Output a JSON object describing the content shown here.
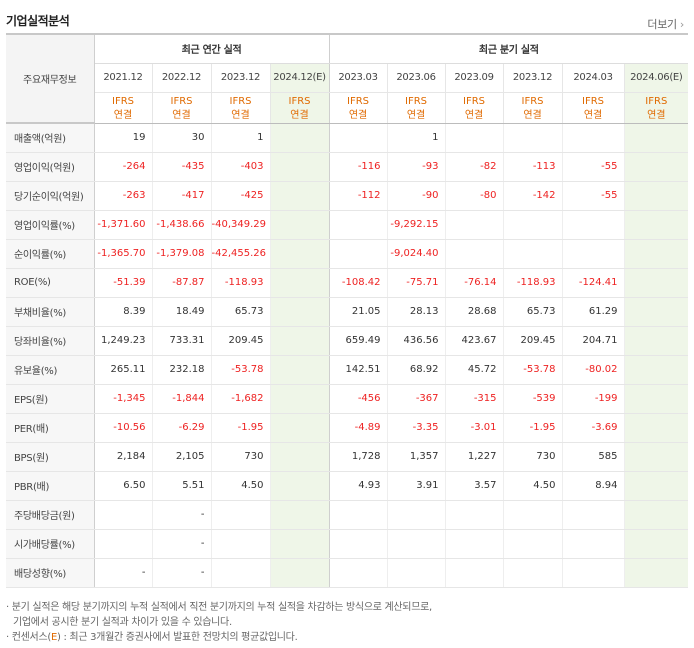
{
  "title": "기업실적분석",
  "more_label": "더보기",
  "header": {
    "corner_label": "주요재무정보",
    "annual_group": "최근 연간 실적",
    "quarter_group": "최근 분기 실적",
    "annual_periods": [
      "2021.12",
      "2022.12",
      "2023.12",
      "2024.12(E)"
    ],
    "quarter_periods": [
      "2023.03",
      "2023.06",
      "2023.09",
      "2023.12",
      "2024.03",
      "2024.06(E)"
    ],
    "ifrs_top": "IFRS",
    "ifrs_bottom": "연결"
  },
  "rows": [
    {
      "label": "매출액(억원)",
      "annual": [
        "19",
        "30",
        "1",
        ""
      ],
      "quarter": [
        "",
        "1",
        "",
        "",
        "",
        ""
      ]
    },
    {
      "label": "영업이익(억원)",
      "annual": [
        "-264",
        "-435",
        "-403",
        ""
      ],
      "quarter": [
        "-116",
        "-93",
        "-82",
        "-113",
        "-55",
        ""
      ]
    },
    {
      "label": "당기순이익(억원)",
      "annual": [
        "-263",
        "-417",
        "-425",
        ""
      ],
      "quarter": [
        "-112",
        "-90",
        "-80",
        "-142",
        "-55",
        ""
      ]
    },
    {
      "label": "영업이익률(%)",
      "annual": [
        "-1,371.60",
        "-1,438.66",
        "-40,349.29",
        ""
      ],
      "quarter": [
        "",
        "-9,292.15",
        "",
        "",
        "",
        ""
      ]
    },
    {
      "label": "순이익률(%)",
      "annual": [
        "-1,365.70",
        "-1,379.08",
        "-42,455.26",
        ""
      ],
      "quarter": [
        "",
        "-9,024.40",
        "",
        "",
        "",
        ""
      ]
    },
    {
      "label": "ROE(%)",
      "annual": [
        "-51.39",
        "-87.87",
        "-118.93",
        ""
      ],
      "quarter": [
        "-108.42",
        "-75.71",
        "-76.14",
        "-118.93",
        "-124.41",
        ""
      ]
    },
    {
      "label": "부채비율(%)",
      "annual": [
        "8.39",
        "18.49",
        "65.73",
        ""
      ],
      "quarter": [
        "21.05",
        "28.13",
        "28.68",
        "65.73",
        "61.29",
        ""
      ]
    },
    {
      "label": "당좌비율(%)",
      "annual": [
        "1,249.23",
        "733.31",
        "209.45",
        ""
      ],
      "quarter": [
        "659.49",
        "436.56",
        "423.67",
        "209.45",
        "204.71",
        ""
      ]
    },
    {
      "label": "유보율(%)",
      "annual": [
        "265.11",
        "232.18",
        "-53.78",
        ""
      ],
      "quarter": [
        "142.51",
        "68.92",
        "45.72",
        "-53.78",
        "-80.02",
        ""
      ]
    },
    {
      "label": "EPS(원)",
      "annual": [
        "-1,345",
        "-1,844",
        "-1,682",
        ""
      ],
      "quarter": [
        "-456",
        "-367",
        "-315",
        "-539",
        "-199",
        ""
      ]
    },
    {
      "label": "PER(배)",
      "annual": [
        "-10.56",
        "-6.29",
        "-1.95",
        ""
      ],
      "quarter": [
        "-4.89",
        "-3.35",
        "-3.01",
        "-1.95",
        "-3.69",
        ""
      ]
    },
    {
      "label": "BPS(원)",
      "annual": [
        "2,184",
        "2,105",
        "730",
        ""
      ],
      "quarter": [
        "1,728",
        "1,357",
        "1,227",
        "730",
        "585",
        ""
      ]
    },
    {
      "label": "PBR(배)",
      "annual": [
        "6.50",
        "5.51",
        "4.50",
        ""
      ],
      "quarter": [
        "4.93",
        "3.91",
        "3.57",
        "4.50",
        "8.94",
        ""
      ]
    },
    {
      "label": "주당배당금(원)",
      "annual": [
        "",
        "-",
        "",
        ""
      ],
      "quarter": [
        "",
        "",
        "",
        "",
        "",
        ""
      ]
    },
    {
      "label": "시가배당률(%)",
      "annual": [
        "",
        "-",
        "",
        ""
      ],
      "quarter": [
        "",
        "",
        "",
        "",
        "",
        ""
      ]
    },
    {
      "label": "배당성향(%)",
      "annual": [
        "-",
        "-",
        "",
        ""
      ],
      "quarter": [
        "",
        "",
        "",
        "",
        "",
        ""
      ]
    }
  ],
  "notes": {
    "line1": "· 분기 실적은 해당 분기까지의 누적 실적에서 직전 분기까지의 누적 실적을 차감하는 방식으로 계산되므로,",
    "line2": "기업에서 공시한 분기 실적과 차이가 있을 수 있습니다.",
    "line3_prefix": "· 컨센서스(",
    "line3_e": "E",
    "line3_suffix": ") : 최근 3개월간 증권사에서 발표한 전망치의 평균값입니다."
  },
  "colors": {
    "negative": "#ee2222",
    "ifrs": "#e06a00",
    "estimate_bg": "#eff6e8"
  }
}
